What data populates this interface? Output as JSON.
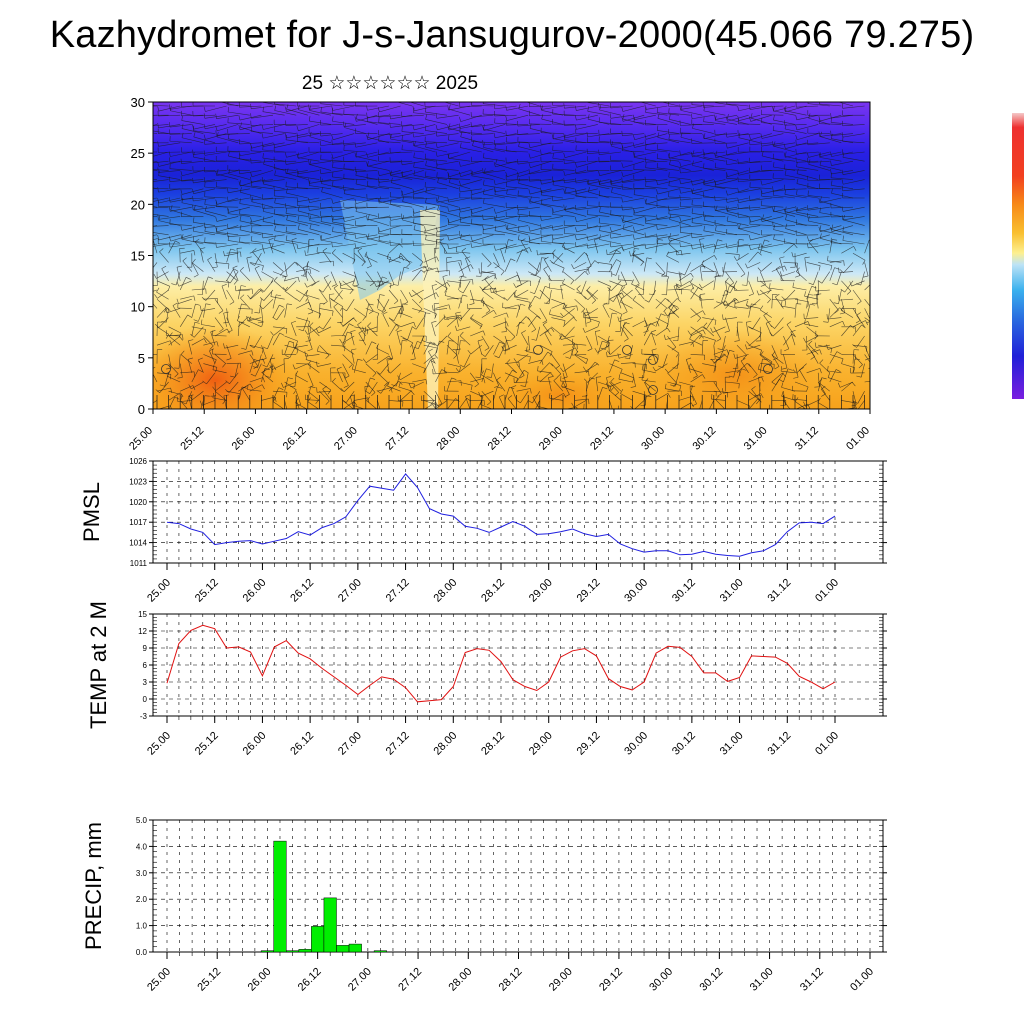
{
  "title": "Kazhydromet for J-s-Jansugurov-2000(45.066 79.275)",
  "subtitle": "25 ☆☆☆☆☆☆ 2025",
  "colors": {
    "pmsl_line": "#1f1fe0",
    "temp_line": "#e01010",
    "precip_bar": "#00ee00",
    "colorbar_top": "#f4c0c0",
    "colorbar_bottom": "#7a1fe0"
  },
  "chart_data": [
    {
      "type": "heatmap",
      "name": "cross-section",
      "ylim": [
        0,
        30
      ],
      "yticks": [
        0,
        5,
        10,
        15,
        20,
        25,
        30
      ],
      "xticks": [
        "25.00",
        "25.12",
        "26.00",
        "26.12",
        "27.00",
        "27.12",
        "28.00",
        "28.12",
        "29.00",
        "29.12",
        "30.00",
        "30.12",
        "31.00",
        "31.12",
        "01.00"
      ],
      "overlay": "wind barbs",
      "grid": false
    },
    {
      "type": "line",
      "name": "pmsl",
      "ylabel": "PMSL",
      "ylim": [
        1011,
        1026
      ],
      "yticks": [
        1011,
        1014,
        1017,
        1020,
        1023,
        1026
      ],
      "xticks": [
        "25.00",
        "25.12",
        "26.00",
        "26.12",
        "27.00",
        "27.12",
        "28.00",
        "28.12",
        "29.00",
        "29.12",
        "30.00",
        "30.12",
        "31.00",
        "31.12",
        "01.00"
      ],
      "x": [
        0,
        1,
        2,
        3,
        4,
        5,
        6,
        7,
        8,
        9,
        10,
        11,
        12,
        13,
        14,
        15,
        16,
        17,
        18,
        19,
        20,
        21,
        22,
        23,
        24,
        25,
        26,
        27,
        28,
        29,
        30,
        31,
        32,
        33,
        34,
        35,
        36,
        37,
        38,
        39,
        40,
        41,
        42,
        43,
        44,
        45,
        46,
        47,
        48,
        49,
        50,
        51,
        52,
        53,
        54,
        55,
        56
      ],
      "values": [
        1017,
        1016.8,
        1016,
        1015.5,
        1013.7,
        1014,
        1014.2,
        1014.3,
        1013.8,
        1014.2,
        1014.6,
        1015.6,
        1015.1,
        1016.2,
        1016.8,
        1017.8,
        1020.2,
        1022.3,
        1022,
        1021.7,
        1024.1,
        1022.1,
        1019,
        1018.2,
        1017.9,
        1016.4,
        1016.1,
        1015.5,
        1016.3,
        1017.1,
        1016.4,
        1015.2,
        1015.3,
        1015.6,
        1016,
        1015.3,
        1014.9,
        1015.2,
        1013.8,
        1013.1,
        1012.6,
        1012.8,
        1012.8,
        1012.2,
        1012.3,
        1012.7,
        1012.3,
        1012.1,
        1012,
        1012.5,
        1012.8,
        1013.7,
        1015.6,
        1016.9,
        1017,
        1016.8,
        1017.9
      ],
      "grid": true
    },
    {
      "type": "line",
      "name": "temp",
      "ylabel": "TEMP at 2 M",
      "ylim": [
        -3,
        15
      ],
      "yticks": [
        -3,
        0,
        3,
        6,
        9,
        12,
        15
      ],
      "xticks": [
        "25.00",
        "25.12",
        "26.00",
        "26.12",
        "27.00",
        "27.12",
        "28.00",
        "28.12",
        "29.00",
        "29.12",
        "30.00",
        "30.12",
        "31.00",
        "31.12",
        "01.00"
      ],
      "x": [
        0,
        1,
        2,
        3,
        4,
        5,
        6,
        7,
        8,
        9,
        10,
        11,
        12,
        13,
        14,
        15,
        16,
        17,
        18,
        19,
        20,
        21,
        22,
        23,
        24,
        25,
        26,
        27,
        28,
        29,
        30,
        31,
        32,
        33,
        34,
        35,
        36,
        37,
        38,
        39,
        40,
        41,
        42,
        43,
        44,
        45,
        46,
        47,
        48,
        49,
        50,
        51,
        52,
        53,
        54,
        55,
        56
      ],
      "values": [
        2.8,
        9.8,
        12.1,
        13,
        12.4,
        9,
        9.2,
        8.3,
        4.1,
        9.2,
        10.3,
        8.1,
        7.1,
        5.4,
        3.9,
        2.4,
        0.8,
        2.4,
        3.9,
        3.5,
        2,
        -0.5,
        -0.3,
        -0.1,
        2.2,
        8.2,
        8.9,
        8.6,
        6.6,
        3.4,
        2.2,
        1.5,
        3,
        7.4,
        8.5,
        8.9,
        7.6,
        3.6,
        2.2,
        1.6,
        3,
        8.1,
        9.3,
        9.1,
        7.5,
        4.6,
        4.6,
        3.1,
        3.8,
        7.6,
        7.5,
        7.4,
        6.3,
        4,
        3,
        1.8,
        3
      ],
      "grid": true
    },
    {
      "type": "bar",
      "name": "precip",
      "ylabel": "PRECIP, mm",
      "ylim": [
        0,
        5
      ],
      "yticks": [
        "0.0",
        "1.0",
        "2.0",
        "3.0",
        "4.0",
        "5.0"
      ],
      "xticks": [
        "25.00",
        "25.12",
        "26.00",
        "26.12",
        "27.00",
        "27.12",
        "28.00",
        "28.12",
        "29.00",
        "29.12",
        "30.00",
        "30.12",
        "31.00",
        "31.12",
        "01.00"
      ],
      "x": [
        0,
        1,
        2,
        3,
        4,
        5,
        6,
        7,
        8,
        9,
        10,
        11,
        12,
        13,
        14,
        15,
        16,
        17,
        18,
        19,
        20,
        21,
        22,
        23,
        24,
        25,
        26,
        27,
        28,
        29,
        30,
        31,
        32,
        33,
        34,
        35,
        36,
        37,
        38,
        39,
        40,
        41,
        42,
        43,
        44,
        45,
        46,
        47,
        48,
        49,
        50,
        51,
        52,
        53,
        54,
        55,
        56
      ],
      "values": [
        0,
        0,
        0,
        0,
        0,
        0,
        0,
        0,
        0.05,
        4.2,
        0.05,
        0.1,
        0.97,
        2.05,
        0.25,
        0.3,
        0,
        0.05,
        0,
        0,
        0,
        0,
        0,
        0,
        0,
        0,
        0,
        0,
        0,
        0,
        0,
        0,
        0,
        0,
        0,
        0,
        0,
        0,
        0,
        0,
        0,
        0,
        0,
        0,
        0,
        0,
        0,
        0,
        0,
        0,
        0,
        0,
        0,
        0,
        0,
        0,
        0
      ],
      "grid": true
    }
  ]
}
